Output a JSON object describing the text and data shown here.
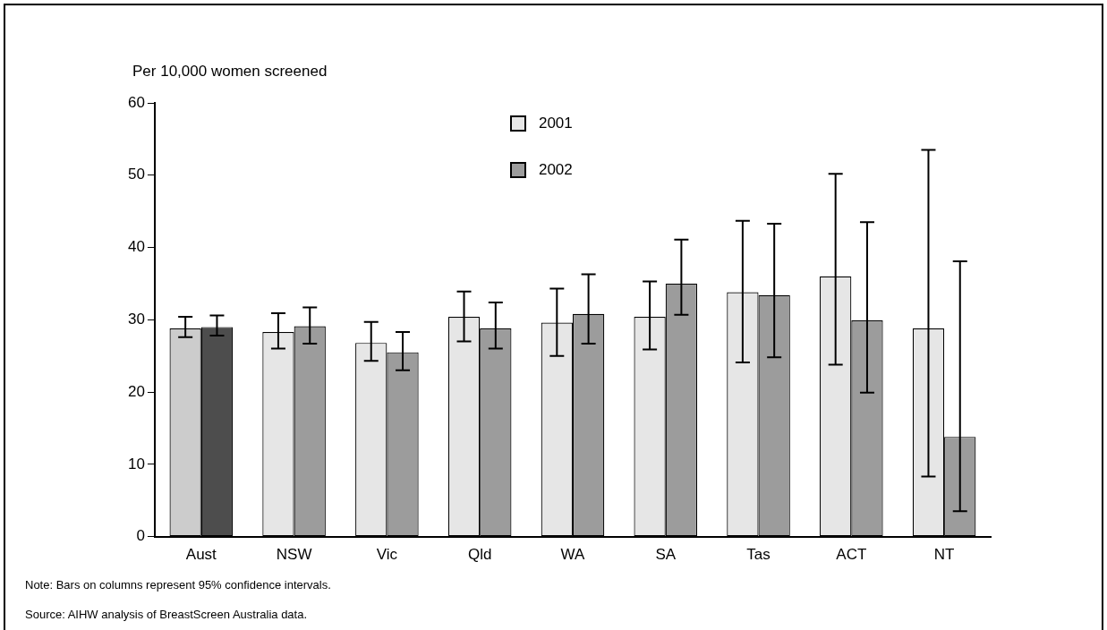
{
  "chart_data": {
    "type": "bar",
    "ylabel": "Per 10,000 women screened",
    "categories": [
      "Aust",
      "NSW",
      "Vic",
      "Qld",
      "WA",
      "SA",
      "Tas",
      "ACT",
      "NT"
    ],
    "series": [
      {
        "name": "2001",
        "color": "#e6e6e6",
        "colors": [
          "#cccccc",
          "#e6e6e6",
          "#e6e6e6",
          "#e6e6e6",
          "#e6e6e6",
          "#e6e6e6",
          "#e6e6e6",
          "#e6e6e6",
          "#e6e6e6"
        ],
        "values": [
          28.8,
          28.3,
          26.8,
          30.4,
          29.6,
          30.4,
          33.8,
          36.0,
          28.8
        ],
        "errors": [
          [
            27.6,
            30.4
          ],
          [
            26.0,
            30.9
          ],
          [
            24.3,
            29.7
          ],
          [
            27.0,
            33.9
          ],
          [
            25.0,
            34.3
          ],
          [
            25.9,
            35.3
          ],
          [
            24.1,
            43.7
          ],
          [
            23.8,
            50.2
          ],
          [
            8.3,
            53.5
          ]
        ]
      },
      {
        "name": "2002",
        "color": "#9c9c9c",
        "colors": [
          "#4d4d4d",
          "#9c9c9c",
          "#9c9c9c",
          "#9c9c9c",
          "#9c9c9c",
          "#9c9c9c",
          "#9c9c9c",
          "#9c9c9c",
          "#9c9c9c"
        ],
        "values": [
          29.0,
          29.1,
          25.5,
          28.8,
          30.8,
          35.0,
          33.4,
          29.9,
          13.8
        ],
        "errors": [
          [
            27.8,
            30.6
          ],
          [
            26.7,
            31.7
          ],
          [
            23.0,
            28.3
          ],
          [
            26.0,
            32.4
          ],
          [
            26.7,
            36.3
          ],
          [
            30.7,
            41.1
          ],
          [
            24.8,
            43.3
          ],
          [
            19.9,
            43.5
          ],
          [
            3.5,
            38.1
          ]
        ]
      }
    ],
    "ylim": [
      0,
      60
    ],
    "yticks": [
      0,
      10,
      20,
      30,
      40,
      50,
      60
    ],
    "grid": false,
    "legend": "top",
    "annotations": [
      "Note: Bars on columns represent 95% confidence intervals.",
      "Source: AIHW analysis of BreastScreen Australia data."
    ]
  }
}
